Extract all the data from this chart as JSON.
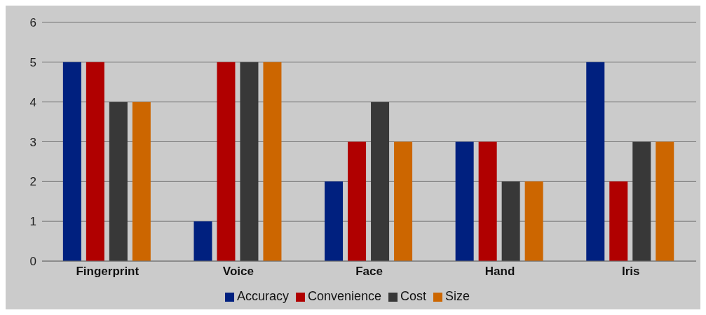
{
  "chart_data": {
    "type": "bar",
    "categories": [
      "Fingerprint",
      "Voice",
      "Face",
      "Hand",
      "Iris"
    ],
    "series": [
      {
        "name": "Accuracy",
        "color": "#00207f",
        "values": [
          5,
          1,
          2,
          3,
          5
        ]
      },
      {
        "name": "Convenience",
        "color": "#b00000",
        "values": [
          5,
          5,
          3,
          3,
          2
        ]
      },
      {
        "name": "Cost",
        "color": "#383838",
        "values": [
          4,
          5,
          4,
          2,
          3
        ]
      },
      {
        "name": "Size",
        "color": "#cc6600",
        "values": [
          4,
          5,
          3,
          2,
          3
        ]
      }
    ],
    "ylim": [
      0,
      6
    ],
    "yticks": [
      0,
      1,
      2,
      3,
      4,
      5,
      6
    ],
    "grid": "y",
    "legend": "bottom"
  }
}
